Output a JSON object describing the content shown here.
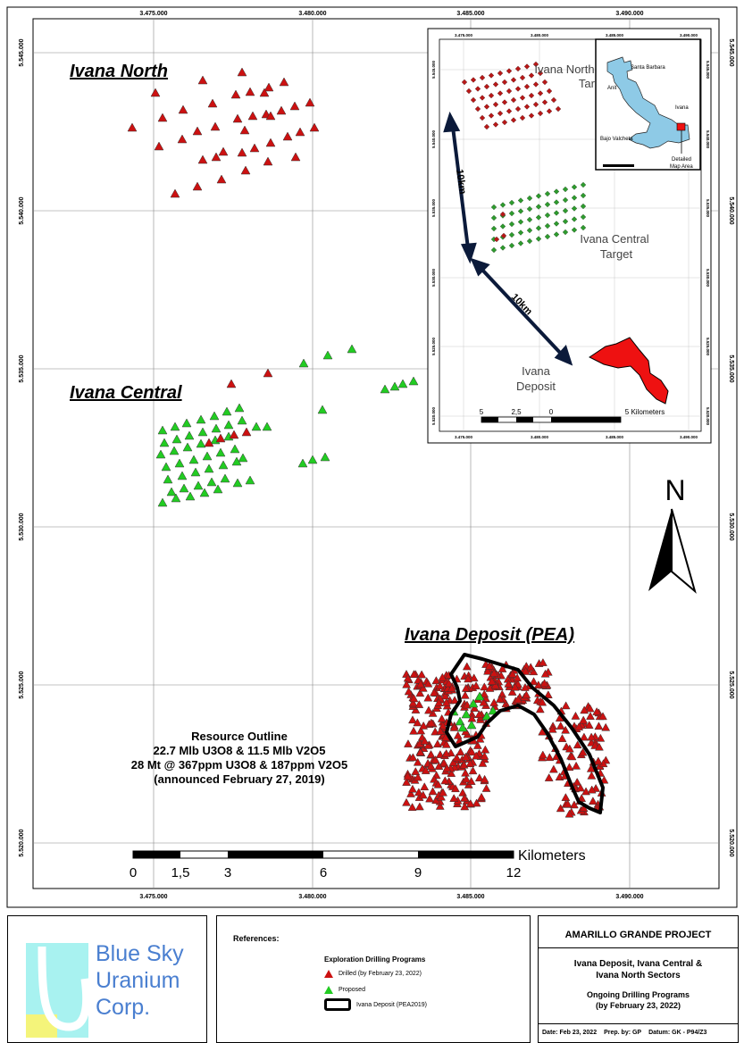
{
  "map": {
    "coord_labels": {
      "easting": [
        "3.475.000",
        "3.480.000",
        "3.485.000",
        "3.490.000"
      ],
      "northing": [
        "5.545.000",
        "5.540.000",
        "5.535.000",
        "5.530.000",
        "5.525.000",
        "5.520.000"
      ]
    },
    "sectors": {
      "north": "Ivana North",
      "central": "Ivana Central",
      "deposit": "Ivana Deposit (PEA)"
    },
    "resource": {
      "line1": "Resource Outline",
      "line2": "22.7 Mlb U3O8 & 11.5 Mlb V2O5",
      "line3": "28 Mt @ 367ppm U3O8 & 187ppm V2O5",
      "line4": "(announced February 27, 2019)"
    },
    "scale": {
      "unit": "Kilometers",
      "ticks": [
        "0",
        "1,5",
        "3",
        "6",
        "9",
        "12"
      ]
    },
    "north_arrow": "N",
    "colors": {
      "drilled": "#cc1111",
      "proposed": "#22cc22",
      "deposit_outline": "#000000",
      "location_fill": "#8ecae6"
    }
  },
  "inset": {
    "coord_labels": {
      "easting": [
        "3.475.000",
        "3.480.000",
        "3.485.000",
        "3.490.000"
      ],
      "northing": [
        "5.545.000",
        "5.540.000",
        "5.535.000",
        "5.530.000",
        "5.525.000",
        "5.520.000"
      ]
    },
    "labels": {
      "north_target_1": "Ivana North",
      "north_target_2": "Target",
      "central_target_1": "Ivana Central",
      "central_target_2": "Target",
      "deposit_1": "Ivana",
      "deposit_2": "Deposit",
      "dist_1": "10km",
      "dist_2": "10km"
    },
    "scale": {
      "ticks": [
        "5",
        "2,5",
        "0",
        "5 Kilometers"
      ]
    },
    "location": {
      "santa_barbara": "Santa Barbara",
      "anit": "Anit",
      "ivana": "Ivana",
      "bajo": "Bajo Valcheta",
      "detailed_1": "Detailed",
      "detailed_2": "Map Area"
    }
  },
  "logo": {
    "line1": "Blue Sky",
    "line2": "Uranium",
    "line3": "Corp."
  },
  "references": {
    "heading": "References:",
    "programs_heading": "Exploration Drilling Programs",
    "drilled": "Drilled (by February 23, 2022)",
    "proposed": "Proposed",
    "deposit": "Ivana Deposit (PEA2019)"
  },
  "titleblock": {
    "project": "AMARILLO GRANDE PROJECT",
    "sectors_1": "Ivana Deposit, Ivana Central &",
    "sectors_2": "Ivana North Sectors",
    "programs_1": "Ongoing Drilling Programs",
    "programs_2": "(by February 23, 2022)",
    "date": "Date: Feb 23, 2022",
    "prep": "Prep. by: GP",
    "datum": "Datum: GK - P94/Z3"
  }
}
